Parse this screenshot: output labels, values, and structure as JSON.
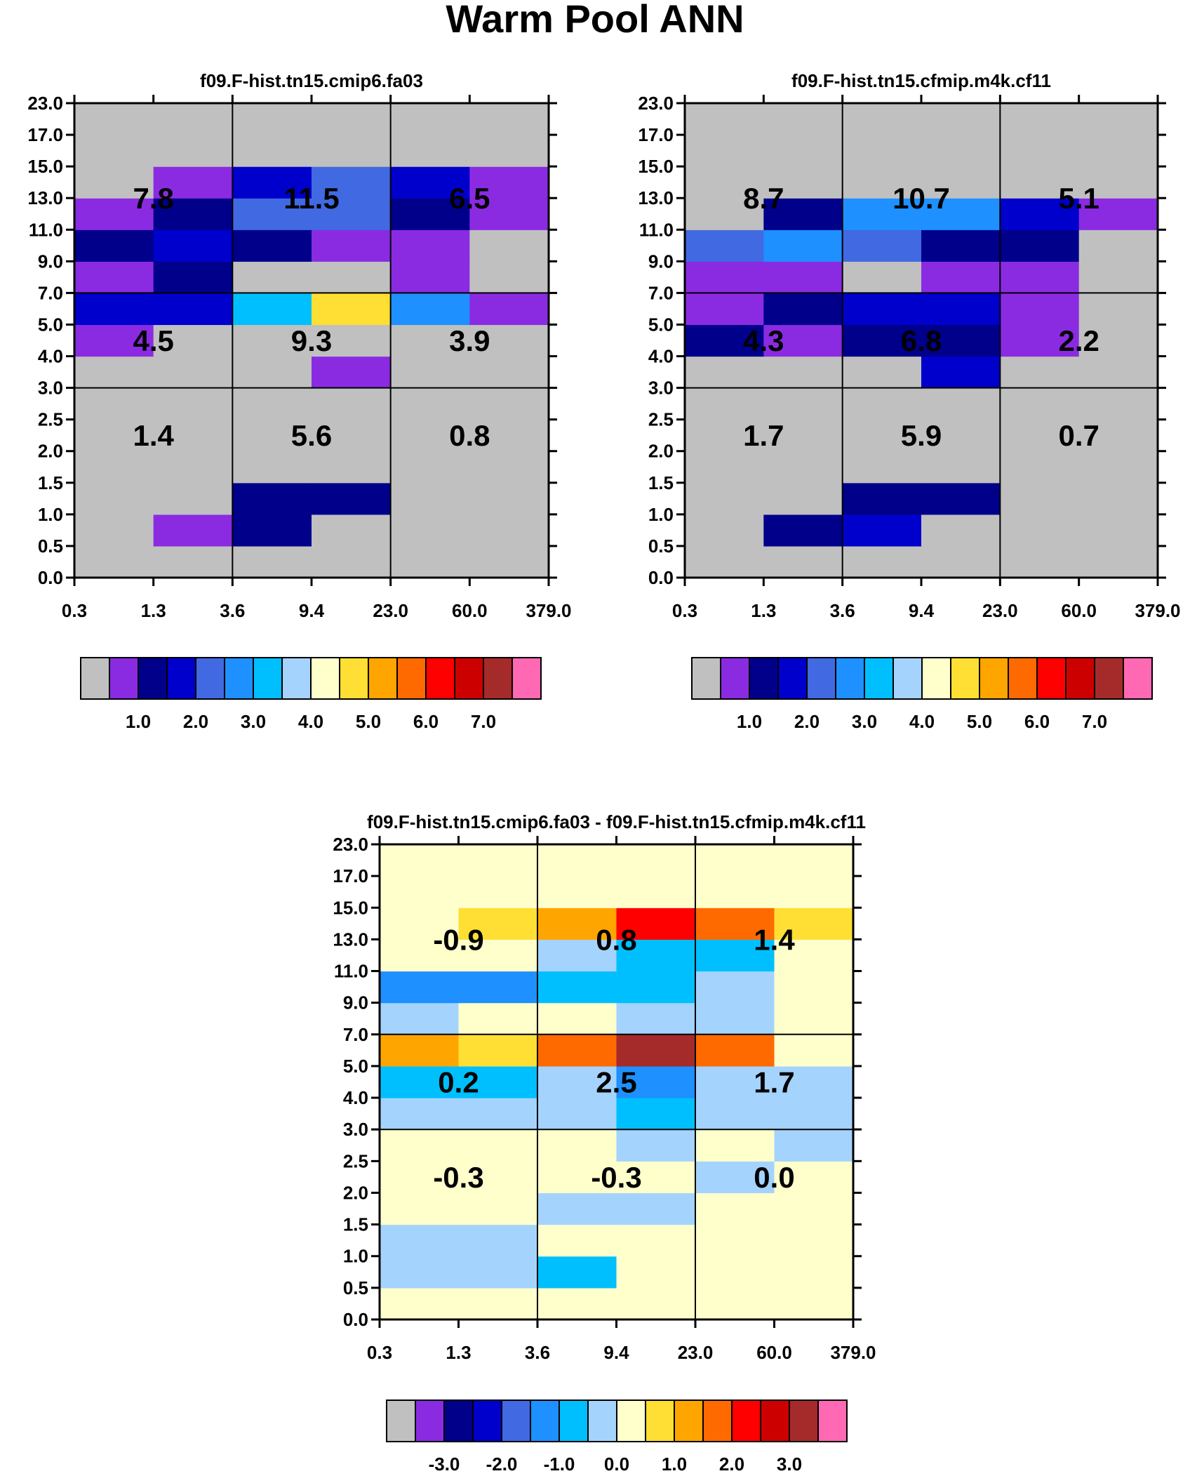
{
  "figure": {
    "title": "Warm Pool ANN"
  },
  "chart_data": {
    "type": "heatmap",
    "xlabels": [
      "0.3",
      "1.3",
      "3.6",
      "9.4",
      "23.0",
      "60.0",
      "379.0"
    ],
    "ylabels": [
      "0.0",
      "0.5",
      "1.0",
      "1.5",
      "2.0",
      "2.5",
      "3.0",
      "4.0",
      "5.0",
      "7.0",
      "9.0",
      "11.0",
      "13.0",
      "15.0",
      "17.0",
      "23.0"
    ],
    "panels": [
      {
        "title": "f09.F-hist.tn15.cmip6.fa03",
        "colorbar": "cb_main",
        "box_labels": [
          "1.4",
          "5.6",
          "0.8",
          "4.5",
          "9.3",
          "3.9",
          "7.8",
          "11.5",
          "6.5"
        ],
        "cells": [
          [
            0,
            0,
            0,
            0,
            0,
            0
          ],
          [
            0,
            1,
            2,
            0,
            0,
            0
          ],
          [
            0,
            0,
            2,
            2,
            0,
            0
          ],
          [
            0,
            0,
            0,
            0,
            0,
            0
          ],
          [
            0,
            0,
            0,
            0,
            0,
            0
          ],
          [
            0,
            0,
            0,
            0,
            0,
            0
          ],
          [
            0,
            0,
            0,
            1,
            0,
            0
          ],
          [
            1,
            0,
            0,
            0,
            0,
            0
          ],
          [
            3,
            3,
            6,
            9,
            5,
            1
          ],
          [
            1,
            2,
            0,
            0,
            1,
            0
          ],
          [
            2,
            3,
            2,
            1,
            1,
            0
          ],
          [
            1,
            2,
            4,
            4,
            2,
            1
          ],
          [
            0,
            1,
            3,
            4,
            3,
            1
          ],
          [
            0,
            0,
            0,
            0,
            0,
            0
          ],
          [
            0,
            0,
            0,
            0,
            0,
            0
          ]
        ]
      },
      {
        "title": "f09.F-hist.tn15.cfmip.m4k.cf11",
        "colorbar": "cb_main",
        "box_labels": [
          "1.7",
          "5.9",
          "0.7",
          "4.3",
          "6.8",
          "2.2",
          "8.7",
          "10.7",
          "5.1"
        ],
        "cells": [
          [
            0,
            0,
            0,
            0,
            0,
            0
          ],
          [
            0,
            2,
            3,
            0,
            0,
            0
          ],
          [
            0,
            0,
            2,
            2,
            0,
            0
          ],
          [
            0,
            0,
            0,
            0,
            0,
            0
          ],
          [
            0,
            0,
            0,
            0,
            0,
            0
          ],
          [
            0,
            0,
            0,
            0,
            0,
            0
          ],
          [
            0,
            0,
            0,
            3,
            0,
            0
          ],
          [
            2,
            1,
            2,
            2,
            1,
            0
          ],
          [
            1,
            2,
            3,
            3,
            1,
            0
          ],
          [
            1,
            1,
            0,
            1,
            1,
            0
          ],
          [
            4,
            5,
            4,
            2,
            2,
            0
          ],
          [
            0,
            2,
            5,
            5,
            3,
            1
          ],
          [
            0,
            0,
            0,
            0,
            0,
            0
          ],
          [
            0,
            0,
            0,
            0,
            0,
            0
          ],
          [
            0,
            0,
            0,
            0,
            0,
            0
          ]
        ]
      },
      {
        "title": "f09.F-hist.tn15.cmip6.fa03 - f09.F-hist.tn15.cfmip.m4k.cf11",
        "colorbar": "cb_diff",
        "box_labels": [
          "-0.3",
          "-0.3",
          "0.0",
          "0.2",
          "2.5",
          "1.7",
          "-0.9",
          "0.8",
          "1.4"
        ],
        "cells": [
          [
            8,
            8,
            8,
            8,
            8,
            8
          ],
          [
            7,
            7,
            6,
            8,
            8,
            8
          ],
          [
            7,
            7,
            8,
            8,
            8,
            8
          ],
          [
            8,
            8,
            7,
            7,
            8,
            8
          ],
          [
            8,
            8,
            8,
            8,
            7,
            8
          ],
          [
            8,
            8,
            8,
            7,
            8,
            7
          ],
          [
            7,
            7,
            7,
            6,
            7,
            7
          ],
          [
            6,
            6,
            7,
            5,
            7,
            7
          ],
          [
            10,
            9,
            11,
            14,
            11,
            8
          ],
          [
            7,
            8,
            8,
            7,
            7,
            8
          ],
          [
            5,
            5,
            6,
            6,
            7,
            8
          ],
          [
            8,
            8,
            7,
            6,
            6,
            8
          ],
          [
            8,
            9,
            10,
            12,
            11,
            9
          ],
          [
            8,
            8,
            8,
            8,
            8,
            8
          ],
          [
            8,
            8,
            8,
            8,
            8,
            8
          ]
        ]
      }
    ],
    "colorbars": {
      "cb_main": {
        "colors": [
          "#c0c0c0",
          "#8a2be2",
          "#00008b",
          "#0000cd",
          "#4169e1",
          "#1e90ff",
          "#00bfff",
          "#a4d3fe",
          "#ffffcc",
          "#ffdf33",
          "#ffa500",
          "#ff6a00",
          "#ff0000",
          "#cd0000",
          "#a52a2a",
          "#ff69b4"
        ],
        "labels": [
          "1.0",
          "2.0",
          "3.0",
          "4.0",
          "5.0",
          "6.0",
          "7.0"
        ],
        "label_boundaries": [
          2,
          4,
          6,
          8,
          10,
          12,
          14
        ]
      },
      "cb_diff": {
        "colors": [
          "#c0c0c0",
          "#8a2be2",
          "#00008b",
          "#0000cd",
          "#4169e1",
          "#1e90ff",
          "#00bfff",
          "#a4d3fe",
          "#ffffcc",
          "#ffdf33",
          "#ffa500",
          "#ff6a00",
          "#ff0000",
          "#cd0000",
          "#a52a2a",
          "#ff69b4"
        ],
        "labels": [
          "-3.0",
          "-2.0",
          "-1.0",
          "0.0",
          "1.0",
          "2.0",
          "3.0"
        ],
        "label_boundaries": [
          2,
          4,
          6,
          8,
          10,
          12,
          14
        ]
      }
    }
  }
}
